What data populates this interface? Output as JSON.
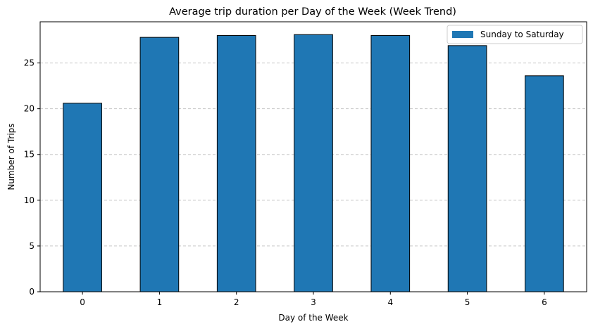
{
  "chart_data": {
    "type": "bar",
    "title": "Average trip duration per Day of the Week (Week Trend)",
    "xlabel": "Day of the Week",
    "ylabel": "Number of Trips",
    "categories": [
      "0",
      "1",
      "2",
      "3",
      "4",
      "5",
      "6"
    ],
    "series": [
      {
        "name": "Sunday to Saturday",
        "values": [
          20.6,
          27.8,
          28.0,
          28.1,
          28.0,
          26.9,
          23.6
        ]
      }
    ],
    "ylim": [
      0,
      29.5
    ],
    "yticks": [
      0,
      5,
      10,
      15,
      20,
      25
    ],
    "grid": "y-dashed",
    "legend_position": "top-right",
    "colors": {
      "bar": "#1f77b4",
      "edge": "#000000",
      "grid": "#c8c8c8"
    }
  }
}
